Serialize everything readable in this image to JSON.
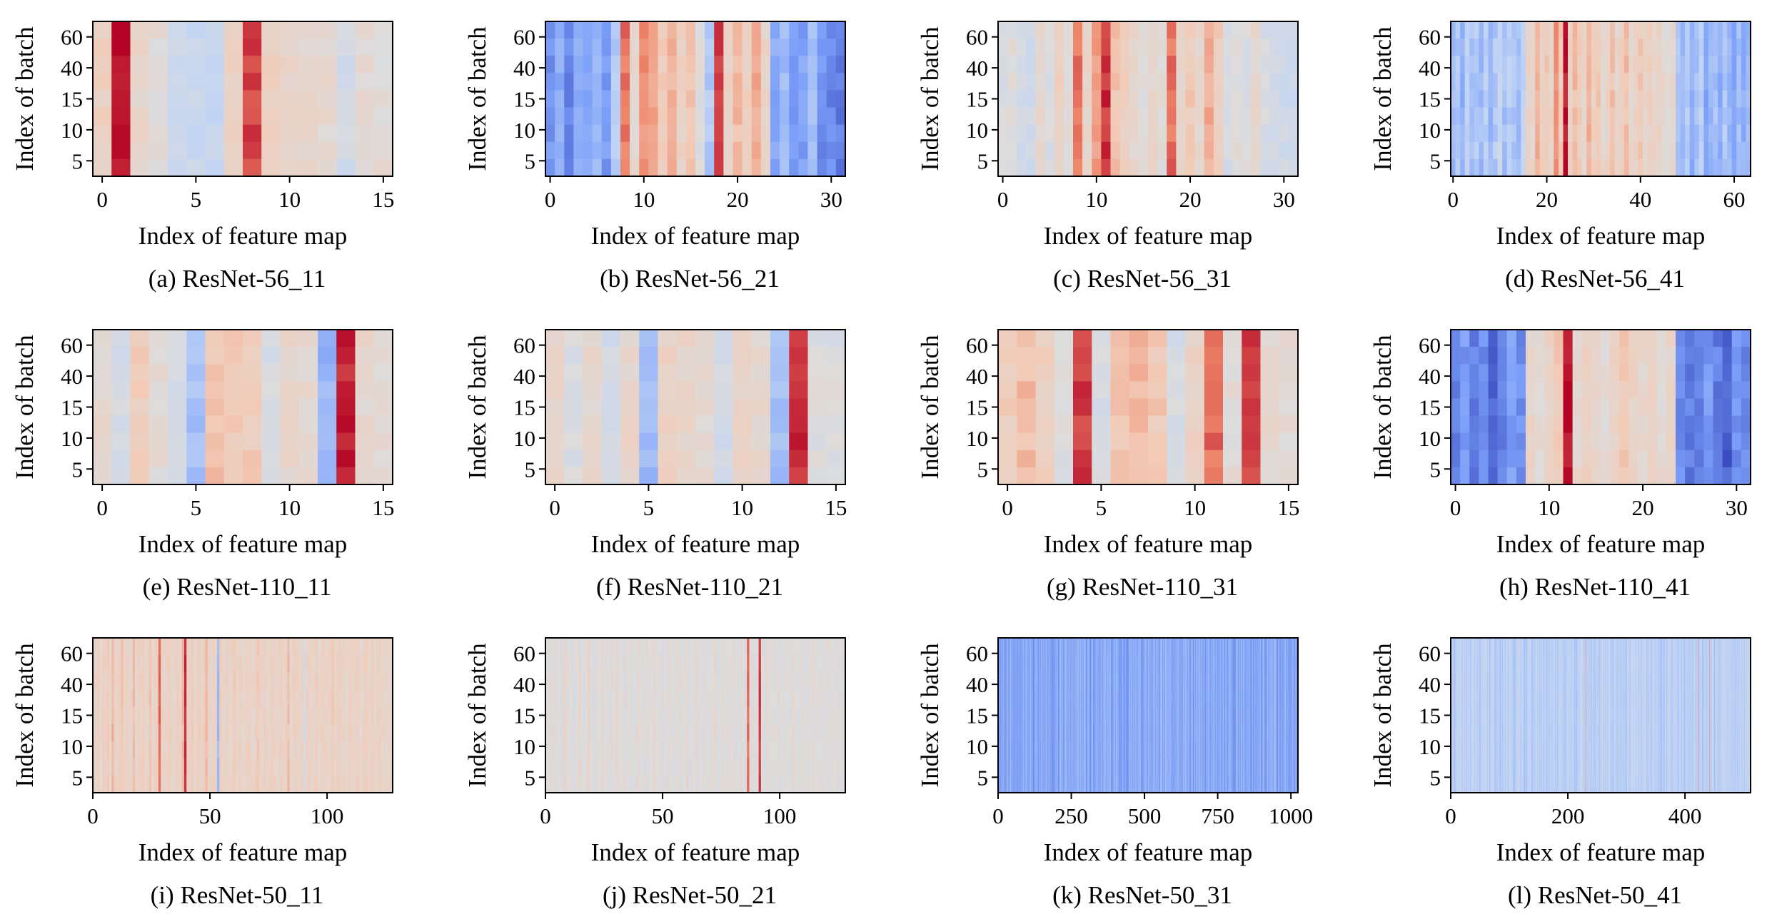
{
  "figure": {
    "colormap": "coolwarm",
    "colormap_stops": [
      "#3b4cc0",
      "#7b9ff9",
      "#c0d4f5",
      "#dddcdc",
      "#f2cbb7",
      "#ee8468",
      "#b40426"
    ]
  },
  "chart_data": [
    {
      "id": "a",
      "type": "heatmap",
      "caption": "(a) ResNet-56_11",
      "xlabel": "Index of feature map",
      "ylabel": "Index of batch",
      "n_features": 16,
      "xticks": [
        0,
        5,
        10,
        15
      ],
      "ylim": [
        0,
        70
      ],
      "yticks": [
        5,
        10,
        15,
        40,
        60
      ],
      "values": [
        0.62,
        0.97,
        0.58,
        0.52,
        0.4,
        0.38,
        0.38,
        0.6,
        0.91,
        0.62,
        0.58,
        0.57,
        0.55,
        0.43,
        0.53,
        0.53
      ],
      "row_noise": 0.04
    },
    {
      "id": "b",
      "type": "heatmap",
      "caption": "(b) ResNet-56_21",
      "xlabel": "Index of feature map",
      "ylabel": "Index of batch",
      "n_features": 32,
      "xticks": [
        0,
        10,
        20,
        30
      ],
      "ylim": [
        0,
        70
      ],
      "yticks": [
        5,
        10,
        15,
        40,
        60
      ],
      "values": [
        0.15,
        0.2,
        0.12,
        0.22,
        0.18,
        0.25,
        0.16,
        0.3,
        0.85,
        0.55,
        0.8,
        0.75,
        0.65,
        0.72,
        0.6,
        0.66,
        0.5,
        0.3,
        0.93,
        0.6,
        0.7,
        0.62,
        0.74,
        0.58,
        0.2,
        0.25,
        0.15,
        0.18,
        0.28,
        0.14,
        0.12,
        0.1
      ],
      "row_noise": 0.04
    },
    {
      "id": "c",
      "type": "heatmap",
      "caption": "(c) ResNet-56_31",
      "xlabel": "Index of feature map",
      "ylabel": "Index of batch",
      "n_features": 32,
      "xticks": [
        0,
        10,
        20,
        30
      ],
      "ylim": [
        0,
        70
      ],
      "yticks": [
        5,
        10,
        15,
        40,
        60
      ],
      "values": [
        0.47,
        0.5,
        0.44,
        0.42,
        0.56,
        0.47,
        0.62,
        0.5,
        0.86,
        0.58,
        0.78,
        0.94,
        0.68,
        0.62,
        0.56,
        0.5,
        0.58,
        0.52,
        0.86,
        0.58,
        0.66,
        0.56,
        0.74,
        0.64,
        0.46,
        0.52,
        0.48,
        0.56,
        0.46,
        0.44,
        0.42,
        0.4
      ],
      "row_noise": 0.04
    },
    {
      "id": "d",
      "type": "heatmap",
      "caption": "(d) ResNet-56_41",
      "xlabel": "Index of feature map",
      "ylabel": "Index of batch",
      "n_features": 64,
      "xticks": [
        0,
        20,
        40,
        60
      ],
      "ylim": [
        0,
        70
      ],
      "yticks": [
        5,
        10,
        15,
        40,
        60
      ],
      "values": [
        0.25,
        0.3,
        0.22,
        0.35,
        0.28,
        0.3,
        0.26,
        0.33,
        0.24,
        0.3,
        0.37,
        0.27,
        0.32,
        0.29,
        0.26,
        0.34,
        0.6,
        0.55,
        0.72,
        0.62,
        0.66,
        0.58,
        0.8,
        0.65,
        0.98,
        0.6,
        0.7,
        0.64,
        0.58,
        0.72,
        0.62,
        0.66,
        0.55,
        0.6,
        0.68,
        0.58,
        0.62,
        0.7,
        0.56,
        0.6,
        0.66,
        0.58,
        0.62,
        0.58,
        0.6,
        0.55,
        0.52,
        0.58,
        0.28,
        0.24,
        0.3,
        0.22,
        0.26,
        0.32,
        0.2,
        0.25,
        0.28,
        0.22,
        0.3,
        0.24,
        0.2,
        0.26,
        0.22,
        0.25
      ],
      "row_noise": 0.04
    },
    {
      "id": "e",
      "type": "heatmap",
      "caption": "(e) ResNet-110_11",
      "xlabel": "Index of feature map",
      "ylabel": "Index of batch",
      "n_features": 16,
      "xticks": [
        0,
        5,
        10,
        15
      ],
      "ylim": [
        0,
        70
      ],
      "yticks": [
        5,
        10,
        15,
        40,
        60
      ],
      "values": [
        0.55,
        0.46,
        0.64,
        0.52,
        0.44,
        0.27,
        0.68,
        0.66,
        0.65,
        0.46,
        0.57,
        0.55,
        0.24,
        0.96,
        0.56,
        0.54
      ],
      "row_noise": 0.04
    },
    {
      "id": "f",
      "type": "heatmap",
      "caption": "(f) ResNet-110_21",
      "xlabel": "Index of feature map",
      "ylabel": "Index of batch",
      "n_features": 16,
      "xticks": [
        0,
        5,
        10,
        15
      ],
      "ylim": [
        0,
        70
      ],
      "yticks": [
        5,
        10,
        15,
        40,
        60
      ],
      "values": [
        0.57,
        0.48,
        0.56,
        0.44,
        0.58,
        0.26,
        0.6,
        0.58,
        0.54,
        0.44,
        0.6,
        0.56,
        0.26,
        0.94,
        0.5,
        0.48
      ],
      "row_noise": 0.04
    },
    {
      "id": "g",
      "type": "heatmap",
      "caption": "(g) ResNet-110_31",
      "xlabel": "Index of feature map",
      "ylabel": "Index of batch",
      "n_features": 16,
      "xticks": [
        0,
        5,
        10,
        15
      ],
      "ylim": [
        0,
        70
      ],
      "yticks": [
        5,
        10,
        15,
        40,
        60
      ],
      "values": [
        0.64,
        0.7,
        0.62,
        0.5,
        0.93,
        0.46,
        0.66,
        0.7,
        0.66,
        0.46,
        0.6,
        0.86,
        0.52,
        0.93,
        0.56,
        0.54
      ],
      "row_noise": 0.04
    },
    {
      "id": "h",
      "type": "heatmap",
      "caption": "(h) ResNet-110_41",
      "xlabel": "Index of feature map",
      "ylabel": "Index of batch",
      "n_features": 32,
      "xticks": [
        0,
        10,
        20,
        30
      ],
      "ylim": [
        0,
        70
      ],
      "yticks": [
        5,
        10,
        15,
        40,
        60
      ],
      "values": [
        0.12,
        0.16,
        0.1,
        0.14,
        0.06,
        0.12,
        0.18,
        0.14,
        0.58,
        0.52,
        0.6,
        0.66,
        0.98,
        0.56,
        0.62,
        0.58,
        0.54,
        0.6,
        0.66,
        0.6,
        0.56,
        0.62,
        0.54,
        0.58,
        0.14,
        0.1,
        0.12,
        0.16,
        0.1,
        0.04,
        0.14,
        0.12
      ],
      "row_noise": 0.04
    },
    {
      "id": "i",
      "type": "heatmap",
      "caption": "(i) ResNet-50_11",
      "xlabel": "Index of feature map",
      "ylabel": "Index of batch",
      "n_features": 128,
      "xticks": [
        0,
        50,
        100
      ],
      "ylim": [
        0,
        70
      ],
      "yticks": [
        5,
        10,
        15,
        40,
        60
      ],
      "values": [
        0.6,
        0.58,
        0.62,
        0.56,
        0.63,
        0.6,
        0.66,
        0.57,
        0.72,
        0.6,
        0.58,
        0.63,
        0.67,
        0.57,
        0.61,
        0.6,
        0.58,
        0.7,
        0.56,
        0.62,
        0.6,
        0.64,
        0.57,
        0.59,
        0.68,
        0.56,
        0.6,
        0.62,
        0.86,
        0.58,
        0.61,
        0.57,
        0.64,
        0.6,
        0.55,
        0.6,
        0.62,
        0.58,
        0.7,
        0.96,
        0.6,
        0.6,
        0.66,
        0.56,
        0.6,
        0.64,
        0.58,
        0.62,
        0.7,
        0.6,
        0.56,
        0.62,
        0.6,
        0.26,
        0.64,
        0.58,
        0.6,
        0.62,
        0.57,
        0.6,
        0.66,
        0.58,
        0.62,
        0.6,
        0.57,
        0.6,
        0.62,
        0.6,
        0.56,
        0.62,
        0.66,
        0.6,
        0.58,
        0.62,
        0.57,
        0.6,
        0.64,
        0.6,
        0.56,
        0.6,
        0.62,
        0.58,
        0.6,
        0.7,
        0.56,
        0.6,
        0.62,
        0.6,
        0.56,
        0.6,
        0.44,
        0.6,
        0.62,
        0.58,
        0.6,
        0.64,
        0.56,
        0.6,
        0.62,
        0.6,
        0.58,
        0.6,
        0.66,
        0.56,
        0.6,
        0.62,
        0.58,
        0.6,
        0.56,
        0.62,
        0.6,
        0.58,
        0.62,
        0.6,
        0.56,
        0.6,
        0.64,
        0.58,
        0.6,
        0.62,
        0.56,
        0.6,
        0.62,
        0.58,
        0.6,
        0.56,
        0.6,
        0.58
      ],
      "row_noise": 0.03
    },
    {
      "id": "j",
      "type": "heatmap",
      "caption": "(j) ResNet-50_21",
      "xlabel": "Index of feature map",
      "ylabel": "Index of batch",
      "n_features": 128,
      "xticks": [
        0,
        50,
        100
      ],
      "ylim": [
        0,
        70
      ],
      "yticks": [
        5,
        10,
        15,
        40,
        60
      ],
      "values": [
        0.52,
        0.5,
        0.56,
        0.48,
        0.54,
        0.5,
        0.46,
        0.55,
        0.58,
        0.5,
        0.49,
        0.53,
        0.47,
        0.51,
        0.57,
        0.5,
        0.48,
        0.52,
        0.6,
        0.5,
        0.46,
        0.54,
        0.51,
        0.49,
        0.56,
        0.5,
        0.52,
        0.47,
        0.54,
        0.5,
        0.58,
        0.49,
        0.51,
        0.55,
        0.47,
        0.5,
        0.53,
        0.5,
        0.48,
        0.56,
        0.5,
        0.52,
        0.46,
        0.54,
        0.5,
        0.51,
        0.57,
        0.49,
        0.5,
        0.53,
        0.47,
        0.5,
        0.55,
        0.5,
        0.48,
        0.52,
        0.5,
        0.54,
        0.49,
        0.5,
        0.56,
        0.48,
        0.51,
        0.5,
        0.55,
        0.47,
        0.5,
        0.53,
        0.5,
        0.49,
        0.52,
        0.5,
        0.56,
        0.48,
        0.5,
        0.54,
        0.5,
        0.49,
        0.52,
        0.5,
        0.55,
        0.48,
        0.5,
        0.53,
        0.5,
        0.49,
        0.86,
        0.5,
        0.54,
        0.48,
        0.5,
        0.93,
        0.5,
        0.48,
        0.56,
        0.5,
        0.52,
        0.49,
        0.5,
        0.54,
        0.47,
        0.5,
        0.52,
        0.5,
        0.48,
        0.55,
        0.5,
        0.51,
        0.49,
        0.53,
        0.5,
        0.48,
        0.52,
        0.5,
        0.55,
        0.49,
        0.5,
        0.51,
        0.48,
        0.52,
        0.5,
        0.54,
        0.49,
        0.5,
        0.52,
        0.48,
        0.5,
        0.51
      ],
      "row_noise": 0.02
    },
    {
      "id": "k",
      "type": "heatmap",
      "caption": "(k) ResNet-50_31",
      "xlabel": "Index of feature map",
      "ylabel": "Index of batch",
      "n_features": 1024,
      "xticks": [
        0,
        250,
        500,
        750,
        1000
      ],
      "ylim": [
        0,
        70
      ],
      "yticks": [
        5,
        10,
        15,
        40,
        60
      ],
      "value_mean": 0.2,
      "value_spread": 0.09,
      "seed": 11,
      "row_noise": 0.01
    },
    {
      "id": "l",
      "type": "heatmap",
      "caption": "(l) ResNet-50_41",
      "xlabel": "Index of feature map",
      "ylabel": "Index of batch",
      "n_features": 512,
      "xticks": [
        0,
        200,
        400
      ],
      "ylim": [
        0,
        70
      ],
      "yticks": [
        5,
        10,
        15,
        40,
        60
      ],
      "value_mean": 0.33,
      "value_spread": 0.06,
      "seed": 41,
      "hot_columns": [
        230,
        423,
        441
      ],
      "hot_value": 0.78,
      "row_noise": 0.01
    }
  ]
}
